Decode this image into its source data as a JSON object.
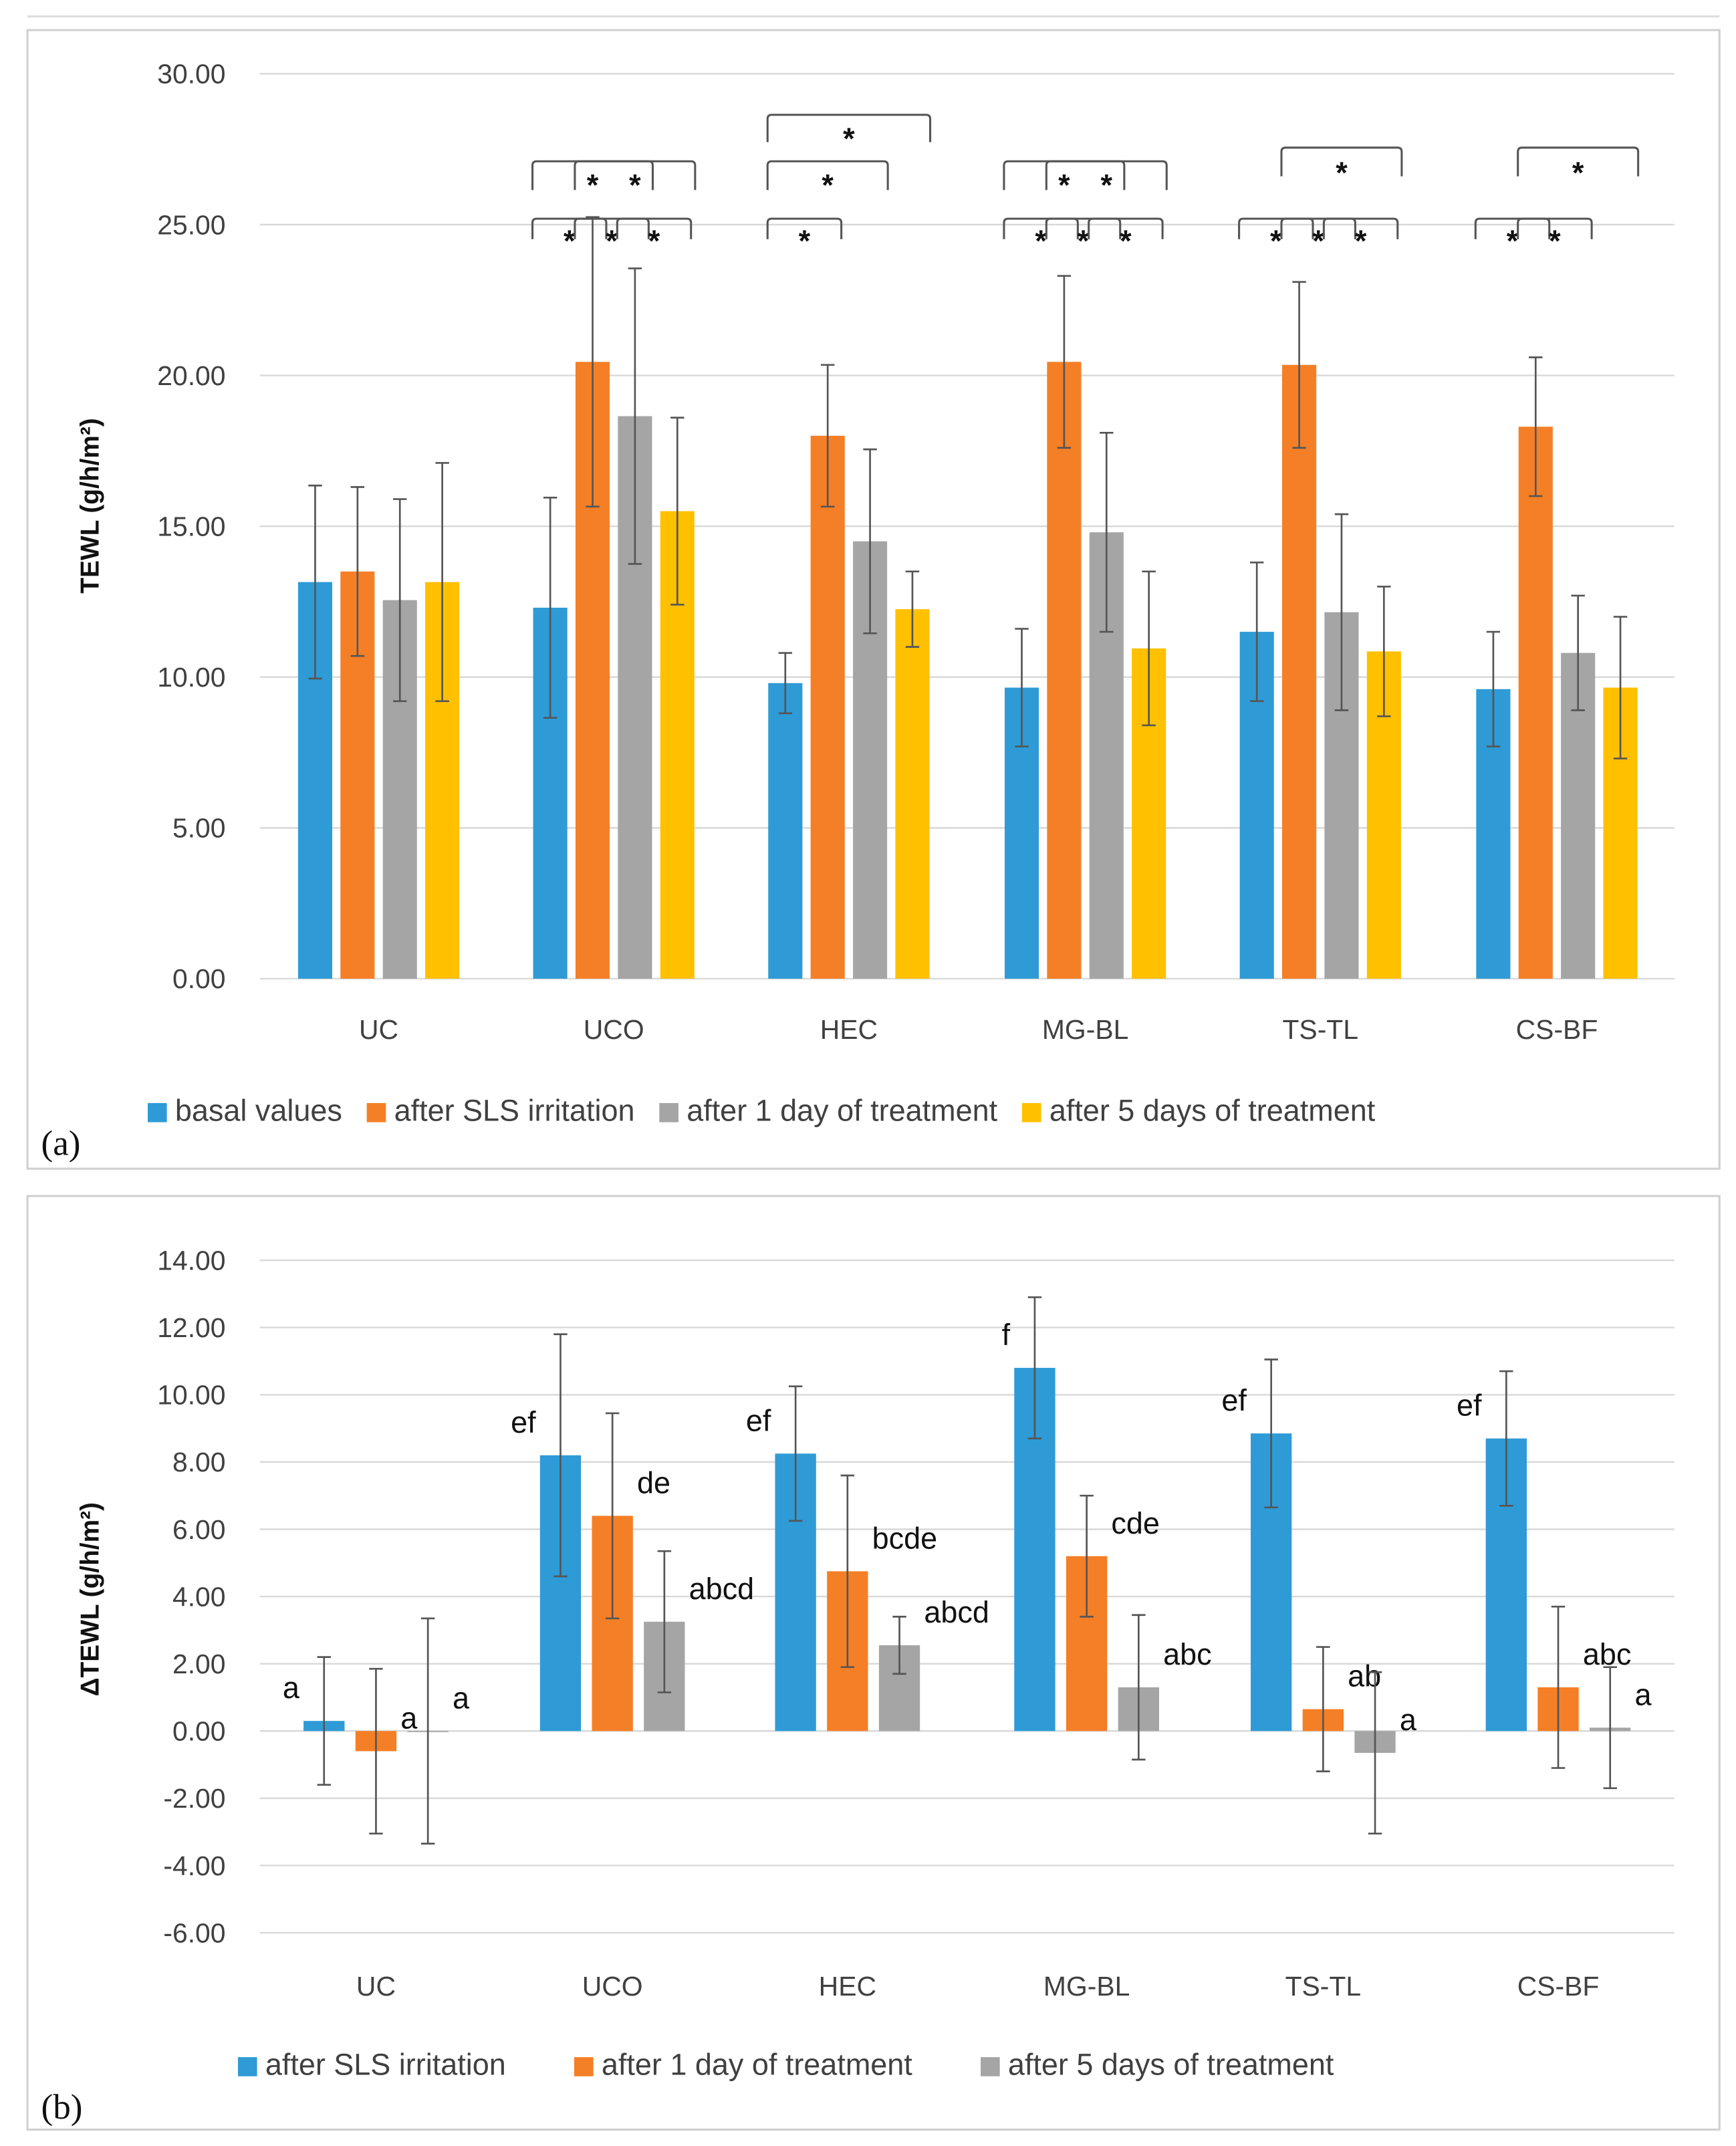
{
  "chart_data": [
    {
      "type": "bar",
      "panel_label": "(a)",
      "ylabel": "TEWL (g/h/m²)",
      "ylim": [
        0,
        30
      ],
      "yticks": [
        "0.00",
        "5.00",
        "10.00",
        "15.00",
        "20.00",
        "25.00",
        "30.00"
      ],
      "grid": true,
      "legend_position": "bottom",
      "categories": [
        "UC",
        "UCO",
        "HEC",
        "MG-BL",
        "TS-TL",
        "CS-BF"
      ],
      "series": [
        {
          "name": "basal values",
          "color": "#2e9bd6",
          "values": [
            13.15,
            12.3,
            9.8,
            9.65,
            11.5,
            9.6
          ],
          "errors": [
            3.2,
            3.65,
            1.0,
            1.95,
            2.3,
            1.9
          ]
        },
        {
          "name": "after SLS irritation",
          "color": "#f57f26",
          "values": [
            13.5,
            20.45,
            18.0,
            20.45,
            20.35,
            18.3
          ],
          "errors": [
            2.8,
            4.8,
            2.35,
            2.85,
            2.75,
            2.3
          ]
        },
        {
          "name": "after 1 day of treatment",
          "color": "#a5a5a5",
          "values": [
            12.55,
            18.65,
            14.5,
            14.8,
            12.15,
            10.8
          ],
          "errors": [
            3.35,
            4.9,
            3.05,
            3.3,
            3.25,
            1.9
          ]
        },
        {
          "name": "after 5 days of treatment",
          "color": "#ffc000",
          "values": [
            13.15,
            15.5,
            12.25,
            10.95,
            10.85,
            9.65
          ],
          "errors": [
            3.95,
            3.1,
            1.25,
            2.55,
            2.15,
            2.35
          ]
        }
      ],
      "significance_label": "*",
      "significance": [
        {
          "category": "UCO",
          "pair": [
            1,
            2
          ]
        },
        {
          "category": "UCO",
          "pair": [
            2,
            3
          ]
        },
        {
          "category": "UCO",
          "pair": [
            3,
            4
          ]
        },
        {
          "category": "UCO",
          "pair": [
            1,
            3
          ]
        },
        {
          "category": "UCO",
          "pair": [
            2,
            4
          ]
        },
        {
          "category": "HEC",
          "pair": [
            1,
            2
          ]
        },
        {
          "category": "HEC",
          "pair": [
            1,
            3
          ]
        },
        {
          "category": "HEC",
          "pair": [
            1,
            4
          ]
        },
        {
          "category": "MG-BL",
          "pair": [
            1,
            2
          ]
        },
        {
          "category": "MG-BL",
          "pair": [
            2,
            3
          ]
        },
        {
          "category": "MG-BL",
          "pair": [
            3,
            4
          ]
        },
        {
          "category": "MG-BL",
          "pair": [
            1,
            3
          ]
        },
        {
          "category": "MG-BL",
          "pair": [
            2,
            4
          ]
        },
        {
          "category": "TS-TL",
          "pair": [
            1,
            2
          ]
        },
        {
          "category": "TS-TL",
          "pair": [
            2,
            3
          ]
        },
        {
          "category": "TS-TL",
          "pair": [
            3,
            4
          ]
        },
        {
          "category": "TS-TL",
          "pair": [
            2,
            4
          ]
        },
        {
          "category": "CS-BF",
          "pair": [
            1,
            2
          ]
        },
        {
          "category": "CS-BF",
          "pair": [
            2,
            3
          ]
        },
        {
          "category": "CS-BF",
          "pair": [
            2,
            4
          ]
        }
      ]
    },
    {
      "type": "bar",
      "panel_label": "(b)",
      "ylabel": "ΔTEWL (g/h/m²)",
      "ylim": [
        -6,
        14
      ],
      "yticks": [
        "-6.00",
        "-4.00",
        "-2.00",
        "0.00",
        "2.00",
        "4.00",
        "6.00",
        "8.00",
        "10.00",
        "12.00",
        "14.00"
      ],
      "grid": true,
      "legend_position": "bottom",
      "categories": [
        "UC",
        "UCO",
        "HEC",
        "MG-BL",
        "TS-TL",
        "CS-BF"
      ],
      "series": [
        {
          "name": "after SLS irritation",
          "color": "#2e9bd6",
          "values": [
            0.3,
            8.2,
            8.25,
            10.8,
            8.85,
            8.7
          ],
          "errors": [
            1.9,
            3.6,
            2.0,
            2.1,
            2.2,
            2.0
          ],
          "letters": [
            "a",
            "ef",
            "ef",
            "f",
            "ef",
            "ef"
          ]
        },
        {
          "name": "after 1 day of treatment",
          "color": "#f57f26",
          "values": [
            -0.6,
            6.4,
            4.75,
            5.2,
            0.65,
            1.3
          ],
          "errors": [
            2.45,
            3.05,
            2.85,
            1.8,
            1.85,
            2.4
          ],
          "letters": [
            "a",
            "de",
            "bcde",
            "cde",
            "ab",
            "abc"
          ]
        },
        {
          "name": "after 5 days of treatment",
          "color": "#a5a5a5",
          "values": [
            0.0,
            3.25,
            2.55,
            1.3,
            -0.65,
            0.1
          ],
          "errors": [
            3.35,
            2.1,
            0.85,
            2.15,
            2.4,
            1.8
          ],
          "letters": [
            "a",
            "abcd",
            "abcd",
            "abc",
            "a",
            "a"
          ]
        }
      ]
    }
  ]
}
